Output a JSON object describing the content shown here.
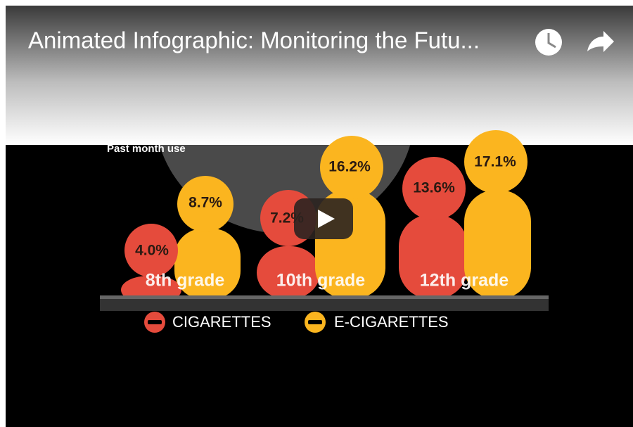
{
  "video": {
    "title": "Animated Infographic: Monitoring the Futu...",
    "frame": {
      "caption": "Past month use",
      "groups": [
        {
          "label": "8th grade",
          "cigarettes": "4.0%",
          "e_cigarettes": "8.7%"
        },
        {
          "label": "10th grade",
          "cigarettes": "7.2%",
          "e_cigarettes": "16.2%"
        },
        {
          "label": "12th grade",
          "cigarettes": "13.6%",
          "e_cigarettes": "17.1%"
        }
      ],
      "legend": [
        "CIGARETTES",
        "E-CIGARETTES"
      ]
    }
  }
}
